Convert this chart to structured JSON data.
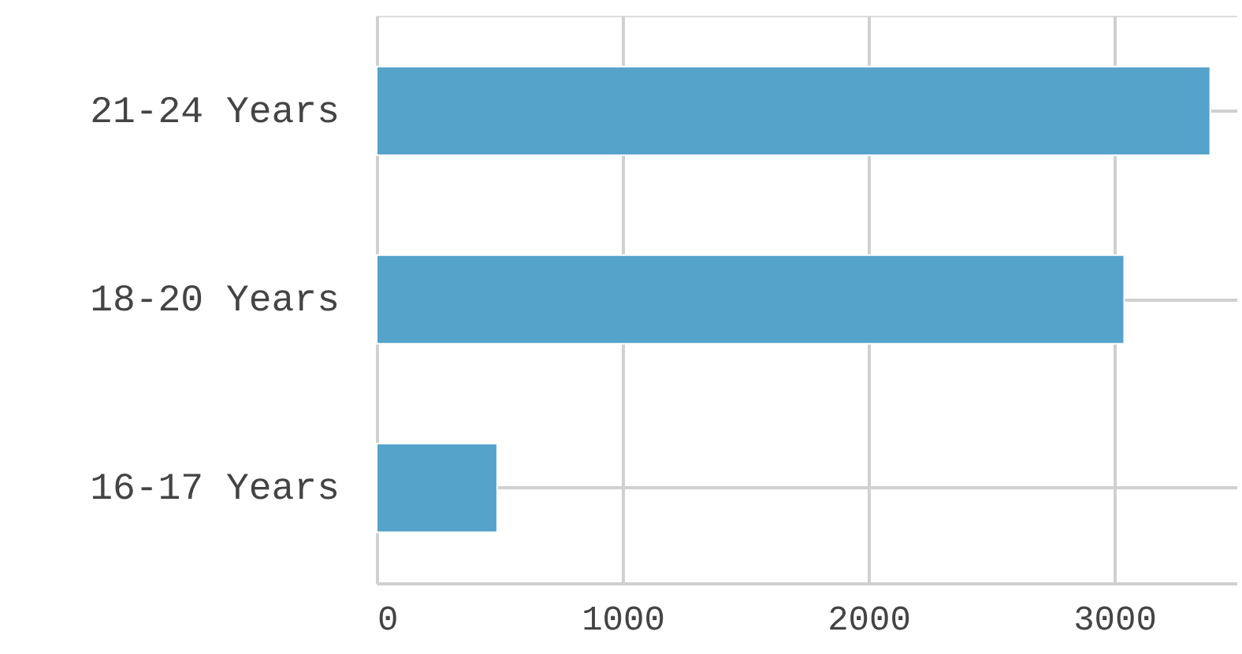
{
  "chart_data": {
    "type": "bar",
    "orientation": "horizontal",
    "categories": [
      "21-24 Years",
      "18-20 Years",
      "16-17 Years"
    ],
    "values": [
      3390,
      3040,
      490
    ],
    "color": "#55a2cb",
    "xlim": [
      0,
      3500
    ],
    "xticks": [
      0,
      1000,
      2000,
      3000
    ],
    "grid": true
  }
}
